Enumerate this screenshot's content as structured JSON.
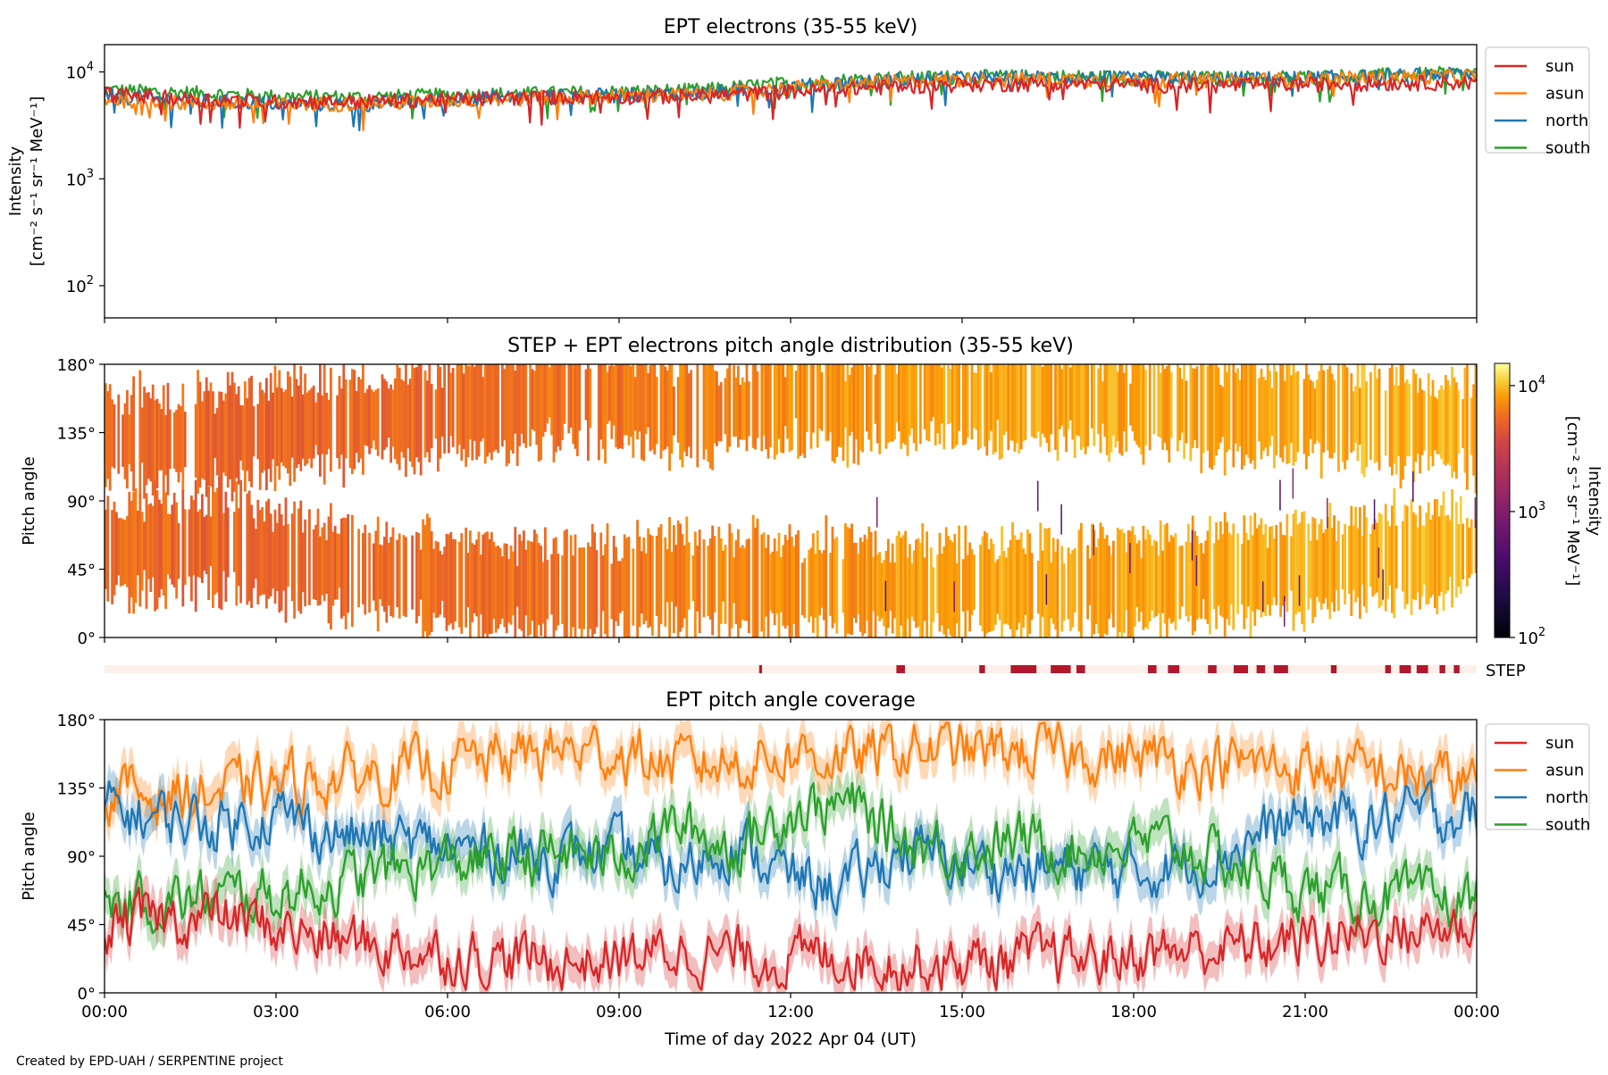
{
  "footer_credit": "Created by EPD-UAH / SERPENTINE project",
  "chart_data": [
    {
      "type": "line",
      "title": "EPT electrons (35-55 keV)",
      "ylabel_line1": "Intensity",
      "ylabel_line2": "[cm⁻² s⁻¹ sr⁻¹ MeV⁻¹]",
      "yscale": "log",
      "ylim": [
        50,
        18000
      ],
      "yticks": [
        {
          "value": 100,
          "base": "10",
          "exp": "2"
        },
        {
          "value": 1000,
          "base": "10",
          "exp": "3"
        },
        {
          "value": 10000,
          "base": "10",
          "exp": "4"
        }
      ],
      "xlim_hours": [
        0,
        24
      ],
      "legend_position": "upper-right-outside",
      "legend": [
        "sun",
        "asun",
        "north",
        "south"
      ],
      "series": [
        {
          "name": "south",
          "color": "#2ca02c",
          "x_hours": [
            0,
            1.5,
            3,
            4.5,
            6,
            7.5,
            9,
            10.5,
            12,
            13.5,
            15,
            16.5,
            18,
            19.5,
            21,
            22.5,
            24
          ],
          "values": [
            6800,
            6400,
            5900,
            5800,
            6100,
            6300,
            6500,
            6800,
            7900,
            8700,
            9000,
            9100,
            8900,
            8800,
            9000,
            9400,
            9800
          ]
        },
        {
          "name": "north",
          "color": "#1f77b4",
          "x_hours": [
            0,
            1.5,
            3,
            4.5,
            6,
            7.5,
            9,
            10.5,
            12,
            13.5,
            15,
            16.5,
            18,
            19.5,
            21,
            22.5,
            24
          ],
          "values": [
            6000,
            5400,
            5100,
            5000,
            5600,
            5900,
            6100,
            6400,
            7300,
            8300,
            8800,
            8900,
            8700,
            8600,
            8800,
            9200,
            9600
          ]
        },
        {
          "name": "asun",
          "color": "#ff7f0e",
          "x_hours": [
            0,
            1.5,
            3,
            4.5,
            6,
            7.5,
            9,
            10.5,
            12,
            13.5,
            15,
            16.5,
            18,
            19.5,
            21,
            22.5,
            24
          ],
          "values": [
            5600,
            5100,
            5000,
            5100,
            5400,
            5700,
            6000,
            6200,
            7100,
            8000,
            8500,
            8600,
            8400,
            8400,
            8600,
            8900,
            9200
          ]
        },
        {
          "name": "sun",
          "color": "#d62728",
          "x_hours": [
            0,
            1.5,
            3,
            4.5,
            6,
            7.5,
            9,
            10.5,
            12,
            13.5,
            15,
            16.5,
            18,
            19.5,
            21,
            22.5,
            24
          ],
          "values": [
            6300,
            5600,
            5300,
            5300,
            5600,
            5800,
            5900,
            6000,
            6600,
            7200,
            7700,
            7800,
            7600,
            7500,
            7700,
            7900,
            8000
          ]
        }
      ]
    },
    {
      "type": "heatmap",
      "title": "STEP + EPT electrons pitch angle distribution (35-55 keV)",
      "ylabel": "Pitch angle",
      "ylim_deg": [
        0,
        180
      ],
      "yticks": [
        "0°",
        "45°",
        "90°",
        "135°",
        "180°"
      ],
      "xlim_hours": [
        0,
        24
      ],
      "colorbar": {
        "scale": "log",
        "range": [
          100,
          15000
        ],
        "colormap": "inferno",
        "label_line1": "Intensity",
        "label_line2": "[cm⁻² s⁻¹ sr⁻¹ MeV⁻¹]",
        "ticks": [
          {
            "value": 100,
            "base": "10",
            "exp": "2"
          },
          {
            "value": 1000,
            "base": "10",
            "exp": "3"
          },
          {
            "value": 10000,
            "base": "10",
            "exp": "4"
          }
        ]
      },
      "intensity_trend": {
        "x_hours": [
          0,
          3,
          6,
          9,
          12,
          15,
          18,
          21,
          24
        ],
        "values": [
          5500,
          5300,
          5600,
          6100,
          7400,
          8600,
          8700,
          8900,
          9300
        ]
      }
    },
    {
      "type": "bar",
      "label": "STEP",
      "background_color": "#fdf0ea",
      "mark_color": "#b2182b",
      "coverage_intervals_hours": [
        [
          11.45,
          11.5
        ],
        [
          13.85,
          14.0
        ],
        [
          15.3,
          15.4
        ],
        [
          15.85,
          16.3
        ],
        [
          16.55,
          16.9
        ],
        [
          17.0,
          17.15
        ],
        [
          18.25,
          18.4
        ],
        [
          18.6,
          18.8
        ],
        [
          19.3,
          19.45
        ],
        [
          19.75,
          20.0
        ],
        [
          20.15,
          20.3
        ],
        [
          20.45,
          20.7
        ],
        [
          21.45,
          21.55
        ],
        [
          22.4,
          22.5
        ],
        [
          22.65,
          22.85
        ],
        [
          22.95,
          23.15
        ],
        [
          23.35,
          23.45
        ],
        [
          23.6,
          23.7
        ]
      ]
    },
    {
      "type": "line",
      "title": "EPT pitch angle coverage",
      "ylabel": "Pitch angle",
      "xlabel": "Time of day 2022 Apr 04 (UT)",
      "ylim_deg": [
        0,
        180
      ],
      "yticks": [
        "0°",
        "45°",
        "90°",
        "135°",
        "180°"
      ],
      "xlim_hours": [
        0,
        24
      ],
      "xticks": [
        "00:00",
        "03:00",
        "06:00",
        "09:00",
        "12:00",
        "15:00",
        "18:00",
        "21:00",
        "00:00"
      ],
      "legend_position": "upper-right-outside",
      "legend": [
        "sun",
        "asun",
        "north",
        "south"
      ],
      "band_halfwidth_deg": 12,
      "series": [
        {
          "name": "asun",
          "color": "#ff7f0e",
          "x_hours": [
            0,
            1,
            2,
            3,
            4,
            5,
            6,
            7,
            8,
            9,
            10,
            11,
            12,
            13,
            14,
            15,
            16,
            17,
            18,
            19,
            20,
            21,
            22,
            23,
            24
          ],
          "values": [
            133,
            130,
            132,
            138,
            142,
            145,
            150,
            155,
            160,
            158,
            150,
            152,
            158,
            154,
            160,
            160,
            158,
            158,
            155,
            152,
            150,
            148,
            145,
            142,
            138
          ]
        },
        {
          "name": "north",
          "color": "#1f77b4",
          "x_hours": [
            0,
            1,
            2,
            3,
            4,
            5,
            6,
            7,
            8,
            9,
            10,
            11,
            12,
            13,
            14,
            15,
            16,
            17,
            18,
            19,
            20,
            21,
            22,
            23,
            24
          ],
          "values": [
            122,
            115,
            112,
            118,
            105,
            100,
            95,
            92,
            90,
            92,
            80,
            100,
            75,
            70,
            95,
            85,
            80,
            82,
            80,
            85,
            100,
            115,
            112,
            118,
            118
          ]
        },
        {
          "name": "south",
          "color": "#2ca02c",
          "x_hours": [
            0,
            1,
            2,
            3,
            4,
            5,
            6,
            7,
            8,
            9,
            10,
            11,
            12,
            13,
            14,
            15,
            16,
            17,
            18,
            19,
            20,
            21,
            22,
            23,
            24
          ],
          "values": [
            58,
            60,
            62,
            65,
            72,
            80,
            85,
            88,
            92,
            90,
            110,
            95,
            120,
            125,
            100,
            95,
            100,
            95,
            98,
            95,
            80,
            68,
            65,
            60,
            60
          ]
        },
        {
          "name": "sun",
          "color": "#d62728",
          "x_hours": [
            0,
            1,
            2,
            3,
            4,
            5,
            6,
            7,
            8,
            9,
            10,
            11,
            12,
            13,
            14,
            15,
            16,
            17,
            18,
            19,
            20,
            21,
            22,
            23,
            24
          ],
          "values": [
            45,
            48,
            50,
            42,
            35,
            30,
            25,
            22,
            20,
            22,
            28,
            25,
            22,
            25,
            20,
            20,
            22,
            22,
            25,
            28,
            30,
            35,
            40,
            42,
            45
          ]
        }
      ]
    }
  ]
}
